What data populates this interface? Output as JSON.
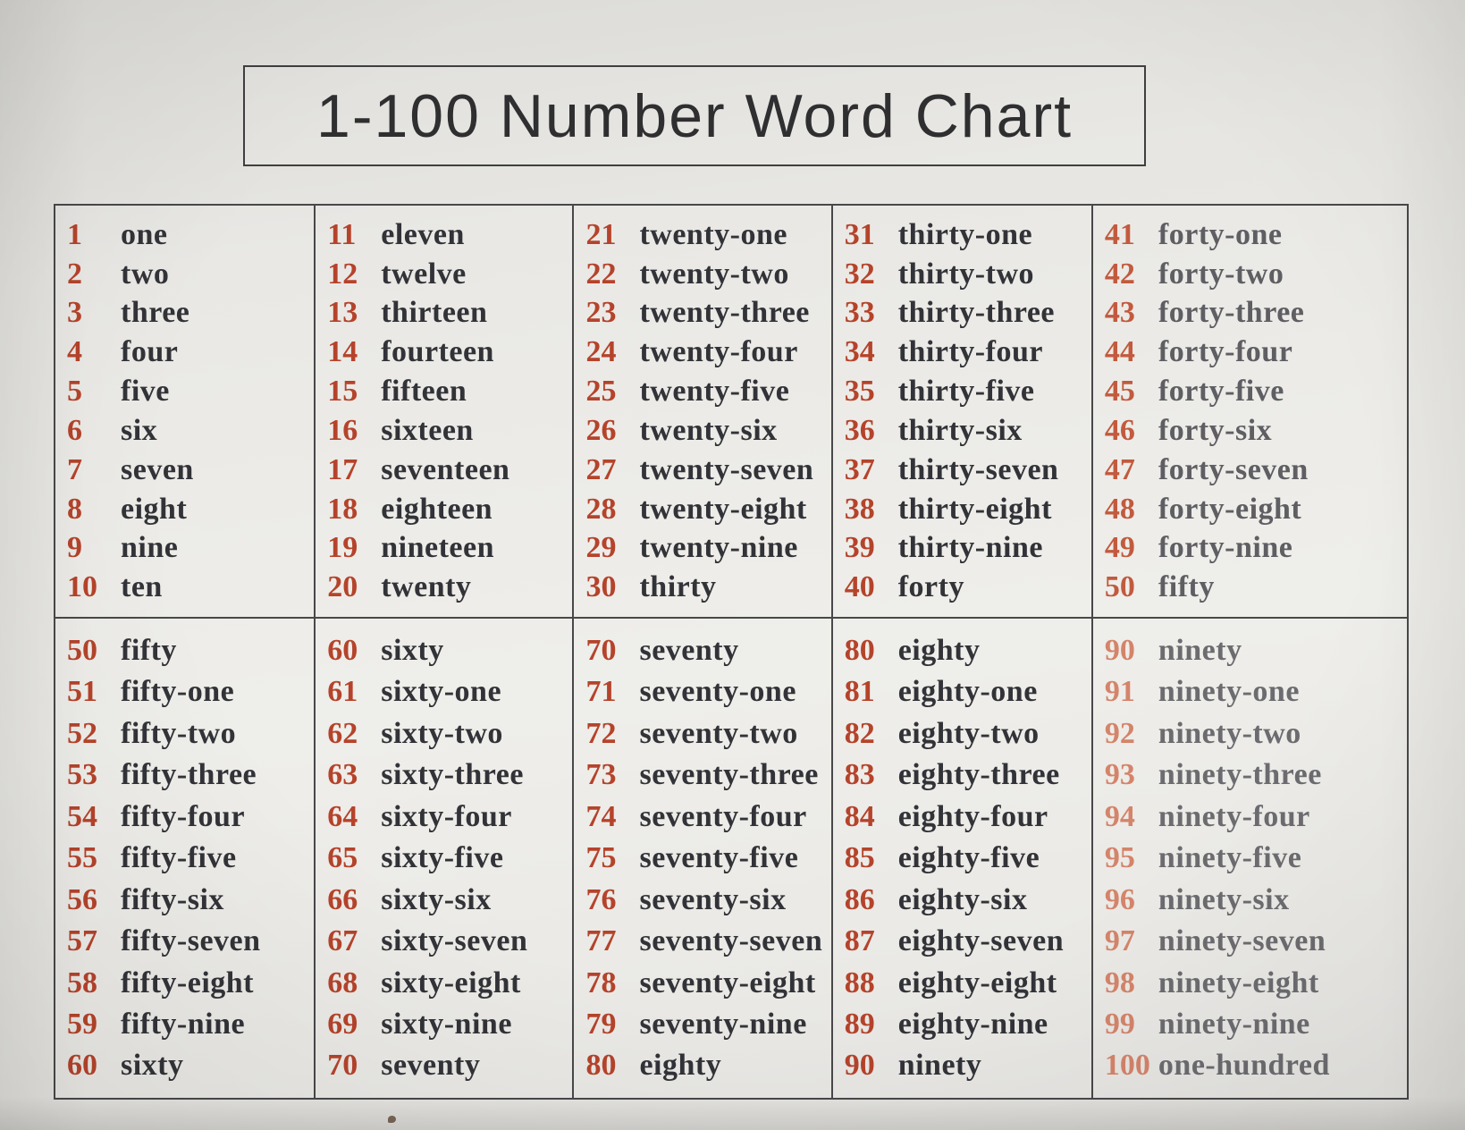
{
  "title": "1-100 Number Word Chart",
  "colors": {
    "number": "#b5432b",
    "word": "#323338",
    "number_faded_light": "#c25a3e",
    "word_faded_light": "#5e5e63",
    "number_faded_lighter": "#d4846a",
    "word_faded_lighter": "#6c6c70",
    "border": "#48484a",
    "title_text": "#2f2f31",
    "paper": "#e9e8e4"
  },
  "table": {
    "cells": [
      {
        "range": "1-10",
        "faded": 0,
        "entries": [
          [
            "1",
            "one"
          ],
          [
            "2",
            "two"
          ],
          [
            "3",
            "three"
          ],
          [
            "4",
            "four"
          ],
          [
            "5",
            "five"
          ],
          [
            "6",
            "six"
          ],
          [
            "7",
            "seven"
          ],
          [
            "8",
            "eight"
          ],
          [
            "9",
            "nine"
          ],
          [
            "10",
            "ten"
          ]
        ]
      },
      {
        "range": "11-20",
        "faded": 0,
        "entries": [
          [
            "11",
            "eleven"
          ],
          [
            "12",
            "twelve"
          ],
          [
            "13",
            "thirteen"
          ],
          [
            "14",
            "fourteen"
          ],
          [
            "15",
            "fifteen"
          ],
          [
            "16",
            "sixteen"
          ],
          [
            "17",
            "seventeen"
          ],
          [
            "18",
            "eighteen"
          ],
          [
            "19",
            "nineteen"
          ],
          [
            "20",
            "twenty"
          ]
        ]
      },
      {
        "range": "21-30",
        "faded": 0,
        "entries": [
          [
            "21",
            "twenty-one"
          ],
          [
            "22",
            "twenty-two"
          ],
          [
            "23",
            "twenty-three"
          ],
          [
            "24",
            "twenty-four"
          ],
          [
            "25",
            "twenty-five"
          ],
          [
            "26",
            "twenty-six"
          ],
          [
            "27",
            "twenty-seven"
          ],
          [
            "28",
            "twenty-eight"
          ],
          [
            "29",
            "twenty-nine"
          ],
          [
            "30",
            "thirty"
          ]
        ]
      },
      {
        "range": "31-40",
        "faded": 0,
        "entries": [
          [
            "31",
            "thirty-one"
          ],
          [
            "32",
            "thirty-two"
          ],
          [
            "33",
            "thirty-three"
          ],
          [
            "34",
            "thirty-four"
          ],
          [
            "35",
            "thirty-five"
          ],
          [
            "36",
            "thirty-six"
          ],
          [
            "37",
            "thirty-seven"
          ],
          [
            "38",
            "thirty-eight"
          ],
          [
            "39",
            "thirty-nine"
          ],
          [
            "40",
            "forty"
          ]
        ]
      },
      {
        "range": "41-50",
        "faded": 1,
        "entries": [
          [
            "41",
            "forty-one"
          ],
          [
            "42",
            "forty-two"
          ],
          [
            "43",
            "forty-three"
          ],
          [
            "44",
            "forty-four"
          ],
          [
            "45",
            "forty-five"
          ],
          [
            "46",
            "forty-six"
          ],
          [
            "47",
            "forty-seven"
          ],
          [
            "48",
            "forty-eight"
          ],
          [
            "49",
            "forty-nine"
          ],
          [
            "50",
            "fifty"
          ]
        ]
      },
      {
        "range": "50-60",
        "faded": 0,
        "entries": [
          [
            "50",
            "fifty"
          ],
          [
            "51",
            "fifty-one"
          ],
          [
            "52",
            "fifty-two"
          ],
          [
            "53",
            "fifty-three"
          ],
          [
            "54",
            "fifty-four"
          ],
          [
            "55",
            "fifty-five"
          ],
          [
            "56",
            "fifty-six"
          ],
          [
            "57",
            "fifty-seven"
          ],
          [
            "58",
            "fifty-eight"
          ],
          [
            "59",
            "fifty-nine"
          ],
          [
            "60",
            "sixty"
          ]
        ]
      },
      {
        "range": "60-70",
        "faded": 0,
        "entries": [
          [
            "60",
            "sixty"
          ],
          [
            "61",
            "sixty-one"
          ],
          [
            "62",
            "sixty-two"
          ],
          [
            "63",
            "sixty-three"
          ],
          [
            "64",
            "sixty-four"
          ],
          [
            "65",
            "sixty-five"
          ],
          [
            "66",
            "sixty-six"
          ],
          [
            "67",
            "sixty-seven"
          ],
          [
            "68",
            "sixty-eight"
          ],
          [
            "69",
            "sixty-nine"
          ],
          [
            "70",
            "seventy"
          ]
        ]
      },
      {
        "range": "70-80",
        "faded": 0,
        "entries": [
          [
            "70",
            "seventy"
          ],
          [
            "71",
            "seventy-one"
          ],
          [
            "72",
            "seventy-two"
          ],
          [
            "73",
            "seventy-three"
          ],
          [
            "74",
            "seventy-four"
          ],
          [
            "75",
            "seventy-five"
          ],
          [
            "76",
            "seventy-six"
          ],
          [
            "77",
            "seventy-seven"
          ],
          [
            "78",
            "seventy-eight"
          ],
          [
            "79",
            "seventy-nine"
          ],
          [
            "80",
            "eighty"
          ]
        ]
      },
      {
        "range": "80-90",
        "faded": 0,
        "entries": [
          [
            "80",
            "eighty"
          ],
          [
            "81",
            "eighty-one"
          ],
          [
            "82",
            "eighty-two"
          ],
          [
            "83",
            "eighty-three"
          ],
          [
            "84",
            "eighty-four"
          ],
          [
            "85",
            "eighty-five"
          ],
          [
            "86",
            "eighty-six"
          ],
          [
            "87",
            "eighty-seven"
          ],
          [
            "88",
            "eighty-eight"
          ],
          [
            "89",
            "eighty-nine"
          ],
          [
            "90",
            "ninety"
          ]
        ]
      },
      {
        "range": "90-100",
        "faded": 2,
        "entries": [
          [
            "90",
            "ninety"
          ],
          [
            "91",
            "ninety-one"
          ],
          [
            "92",
            "ninety-two"
          ],
          [
            "93",
            "ninety-three"
          ],
          [
            "94",
            "ninety-four"
          ],
          [
            "95",
            "ninety-five"
          ],
          [
            "96",
            "ninety-six"
          ],
          [
            "97",
            "ninety-seven"
          ],
          [
            "98",
            "ninety-eight"
          ],
          [
            "99",
            "ninety-nine"
          ],
          [
            "100",
            "one-hundred"
          ]
        ]
      }
    ]
  }
}
